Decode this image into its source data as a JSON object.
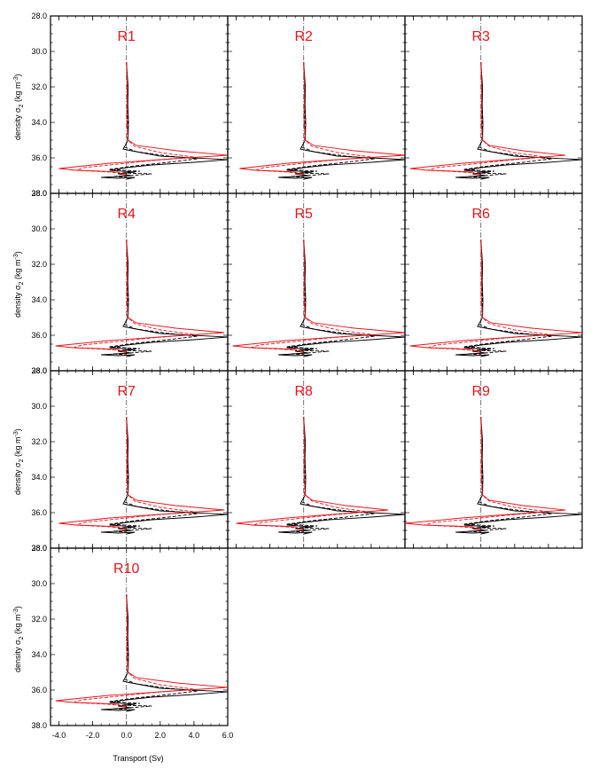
{
  "figure": {
    "xlabel": "Transport (Sv)",
    "ylabel_main": "density σ",
    "ylabel_sub": "2",
    "ylabel_units": " (kg m",
    "ylabel_units_sup": "-3",
    "ylabel_close": ")"
  },
  "colors": {
    "red": "#e8141b",
    "black": "#000000",
    "center": "#555555"
  },
  "chart_data": {
    "type": "line",
    "xlim": [
      -4.5,
      6.0
    ],
    "ylim": [
      28.0,
      38.0
    ],
    "y_reversed": true,
    "x_ticks": [
      -4.0,
      -2.0,
      0.0,
      2.0,
      4.0,
      6.0
    ],
    "x_tick_labels": [
      "-4.0",
      "-2.0",
      "0.0",
      "2.0",
      "4.0",
      "6.0"
    ],
    "y_ticks": [
      28.0,
      30.0,
      32.0,
      34.0,
      36.0,
      38.0
    ],
    "y_tick_labels": [
      "28.0",
      "30.0",
      "32.0",
      "34.0",
      "36.0",
      "38.0"
    ],
    "grid": false,
    "panels": [
      {
        "title": "R1",
        "red_max": 6.0,
        "red_dash_max": 4.0,
        "red_min": -4.0
      },
      {
        "title": "R2",
        "red_max": 6.0,
        "red_dash_max": 4.0,
        "red_min": -3.8
      },
      {
        "title": "R3",
        "red_max": 5.0,
        "red_dash_max": 3.8,
        "red_min": -4.2
      },
      {
        "title": "R4",
        "red_max": 5.8,
        "red_dash_max": 4.0,
        "red_min": -4.2
      },
      {
        "title": "R5",
        "red_max": 6.0,
        "red_dash_max": 4.0,
        "red_min": -4.2
      },
      {
        "title": "R6",
        "red_max": 6.0,
        "red_dash_max": 4.0,
        "red_min": -4.2
      },
      {
        "title": "R7",
        "red_max": 5.8,
        "red_dash_max": 4.0,
        "red_min": -4.0
      },
      {
        "title": "R8",
        "red_max": 5.0,
        "red_dash_max": 3.8,
        "red_min": -4.0
      },
      {
        "title": "R9",
        "red_max": 5.0,
        "red_dash_max": 4.0,
        "red_min": -4.5
      },
      {
        "title": "R10",
        "red_max": 6.0,
        "red_dash_max": 4.0,
        "red_min": -4.2
      }
    ],
    "series": [
      {
        "style": "red solid",
        "points": [
          [
            0,
            30.6
          ],
          [
            0.05,
            32.0
          ],
          [
            0.02,
            33.8
          ],
          [
            0.1,
            35.0
          ],
          [
            0.6,
            35.3
          ],
          [
            3.0,
            35.6
          ],
          [
            6.0,
            35.85
          ],
          [
            2.0,
            36.1
          ],
          [
            -1.0,
            36.3
          ],
          [
            -4.0,
            36.6
          ],
          [
            -3.0,
            36.7
          ],
          [
            -1.5,
            36.75
          ],
          [
            -0.5,
            36.8
          ],
          [
            -0.3,
            36.9
          ],
          [
            0,
            37.0
          ]
        ]
      },
      {
        "style": "red dashed",
        "points": [
          [
            0,
            30.6
          ],
          [
            0.04,
            32.0
          ],
          [
            0.02,
            33.8
          ],
          [
            0.08,
            35.0
          ],
          [
            0.5,
            35.35
          ],
          [
            2.0,
            35.7
          ],
          [
            4.0,
            35.95
          ],
          [
            1.5,
            36.15
          ],
          [
            -0.5,
            36.35
          ],
          [
            -2.5,
            36.55
          ],
          [
            -3.0,
            36.7
          ],
          [
            -1.0,
            36.8
          ],
          [
            0,
            36.9
          ]
        ]
      },
      {
        "style": "black solid",
        "points": [
          [
            0,
            30.6
          ],
          [
            0.1,
            32.0
          ],
          [
            0.08,
            33.0
          ],
          [
            0.12,
            34.0
          ],
          [
            0.1,
            35.0
          ],
          [
            -0.2,
            35.5
          ],
          [
            0.3,
            35.6
          ],
          [
            2.0,
            35.9
          ],
          [
            6.0,
            36.1
          ],
          [
            4.0,
            36.25
          ],
          [
            1.5,
            36.4
          ],
          [
            0,
            36.55
          ],
          [
            -1.0,
            36.7
          ],
          [
            0.5,
            36.8
          ],
          [
            -0.5,
            36.9
          ],
          [
            0.3,
            37.0
          ],
          [
            -1.5,
            37.1
          ],
          [
            -0.5,
            37.15
          ],
          [
            0.5,
            37.1
          ],
          [
            0,
            37.2
          ]
        ]
      },
      {
        "style": "black dashed",
        "points": [
          [
            0,
            30.6
          ],
          [
            0.07,
            32.0
          ],
          [
            0.05,
            33.0
          ],
          [
            0.08,
            34.0
          ],
          [
            0.05,
            35.0
          ],
          [
            -0.1,
            35.4
          ],
          [
            0.6,
            35.65
          ],
          [
            2.5,
            35.9
          ],
          [
            4.2,
            36.05
          ],
          [
            2.5,
            36.25
          ],
          [
            0.5,
            36.45
          ],
          [
            -1.0,
            36.65
          ],
          [
            0.8,
            36.75
          ],
          [
            -0.3,
            36.85
          ],
          [
            1.5,
            36.9
          ],
          [
            0.2,
            37.0
          ],
          [
            -0.8,
            37.05
          ],
          [
            0,
            37.1
          ]
        ]
      }
    ]
  }
}
